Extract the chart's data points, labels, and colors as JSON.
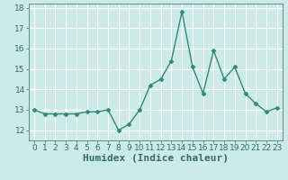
{
  "x": [
    0,
    1,
    2,
    3,
    4,
    5,
    6,
    7,
    8,
    9,
    10,
    11,
    12,
    13,
    14,
    15,
    16,
    17,
    18,
    19,
    20,
    21,
    22,
    23
  ],
  "y": [
    13.0,
    12.8,
    12.8,
    12.8,
    12.8,
    12.9,
    12.9,
    13.0,
    12.0,
    12.3,
    13.0,
    14.2,
    14.5,
    15.4,
    17.8,
    15.1,
    13.8,
    15.9,
    14.5,
    15.1,
    13.8,
    13.3,
    12.9,
    13.1
  ],
  "line_color": "#2e8b72",
  "marker": "D",
  "marker_size": 2.5,
  "bg_color": "#cceae7",
  "grid_color": "#ffffff",
  "xlabel": "Humidex (Indice chaleur)",
  "xlabel_fontsize": 8,
  "xlabel_weight": "bold",
  "tick_color": "#2e7060",
  "ylim": [
    11.5,
    18.2
  ],
  "xlim": [
    -0.5,
    23.5
  ],
  "yticks": [
    12,
    13,
    14,
    15,
    16,
    17,
    18
  ],
  "xticks": [
    0,
    1,
    2,
    3,
    4,
    5,
    6,
    7,
    8,
    9,
    10,
    11,
    12,
    13,
    14,
    15,
    16,
    17,
    18,
    19,
    20,
    21,
    22,
    23
  ],
  "tick_fontsize": 6.5,
  "line_width": 1.0
}
